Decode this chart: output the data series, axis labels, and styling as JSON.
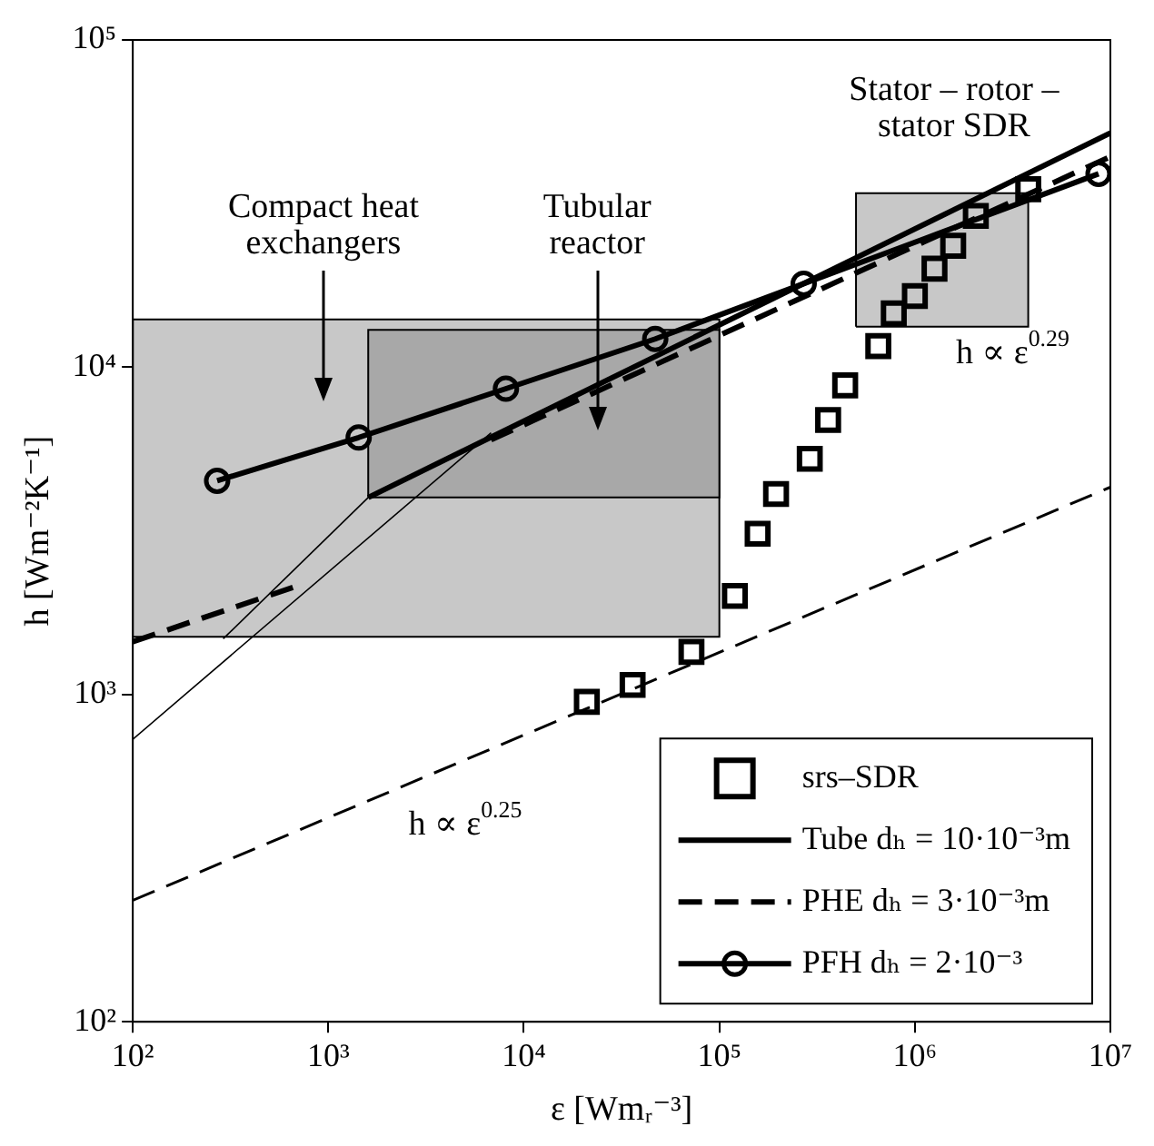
{
  "chart_data": {
    "type": "line",
    "xlabel": "ε [Wmᵣ⁻³]",
    "ylabel": "h [Wm⁻²K⁻¹]",
    "log": "xy",
    "xlim": [
      100,
      10000000
    ],
    "ylim": [
      100,
      100000
    ],
    "xticks": [
      {
        "value": 100,
        "label": "10²"
      },
      {
        "value": 1000,
        "label": "10³"
      },
      {
        "value": 10000,
        "label": "10⁴"
      },
      {
        "value": 100000,
        "label": "10⁵"
      },
      {
        "value": 1000000,
        "label": "10⁶"
      },
      {
        "value": 10000000,
        "label": "10⁷"
      }
    ],
    "yticks": [
      {
        "value": 100,
        "label": "10²"
      },
      {
        "value": 1000,
        "label": "10³"
      },
      {
        "value": 10000,
        "label": "10⁴"
      },
      {
        "value": 100000,
        "label": "10⁵"
      }
    ],
    "legend": "bottom right",
    "series": [
      {
        "type": "area",
        "x": [
          100,
          100,
          100000,
          100000,
          100
        ],
        "values": [
          1500,
          14000,
          14000,
          1500,
          1500
        ],
        "color": "#c8c8c8"
      },
      {
        "type": "area",
        "x": [
          1600,
          1600,
          100000,
          100000,
          1600
        ],
        "values": [
          4000,
          13000,
          13000,
          4000,
          4000
        ],
        "color": "#a8a8a8"
      },
      {
        "type": "area",
        "x": [
          500000,
          500000,
          3800000,
          3800000,
          500000
        ],
        "values": [
          13300,
          34000,
          34000,
          13300,
          13300
        ],
        "color": "#c8c8c8"
      },
      {
        "x": [
          100,
          10000000
        ],
        "values": [
          235,
          4300
        ],
        "color": "#000000",
        "line_style": "dashed"
      },
      {
        "x": [
          100,
          6800
        ],
        "values": [
          730,
          6300
        ],
        "color": "#000000",
        "line_style": "solid"
      },
      {
        "x": [
          290,
          1600
        ],
        "values": [
          1480,
          4000
        ],
        "color": "#000000",
        "line_style": "solid"
      },
      {
        "type": "scatter",
        "name": "srs–SDR",
        "marker": "square",
        "color": "#000000",
        "x": [
          21000,
          36000,
          72000,
          120000,
          157000,
          195000,
          290000,
          360000,
          440000,
          650000,
          780000,
          1000000,
          1260000,
          1570000,
          2050000,
          3800000
        ],
        "values": [
          950,
          1070,
          1350,
          2000,
          3100,
          4100,
          5250,
          6900,
          8800,
          11600,
          14600,
          16500,
          20000,
          23500,
          29000,
          35000
        ]
      },
      {
        "name": "Tube dₕ = 10·10⁻³m",
        "color": "#000000",
        "line_style": "solid",
        "x": [
          1600,
          10000000
        ],
        "values": [
          4000,
          52000
        ]
      },
      {
        "name": "PHE dₕ = 3·10⁻³m",
        "color": "#000000",
        "line_style": "dashed",
        "x": [
          100,
          700,
          3000,
          6800,
          10000000
        ],
        "values": [
          1450,
          2150,
          null,
          6000,
          44000
        ]
      },
      {
        "name": "PFH dₕ = 2·10⁻³",
        "color": "#000000",
        "line_style": "solid",
        "marker": "circle",
        "x": [
          270,
          1430,
          8100,
          47000,
          270000,
          8700000
        ],
        "values": [
          4500,
          6100,
          8600,
          12200,
          18000,
          39000
        ]
      }
    ],
    "annotations": [
      "Compact heat\nexchangers",
      "Tubular\nreactor",
      "Stator – rotor –\nstator SDR",
      "h ∝ ε$^{0.29}$",
      "h ∝ ε$^{0.25}$"
    ]
  }
}
